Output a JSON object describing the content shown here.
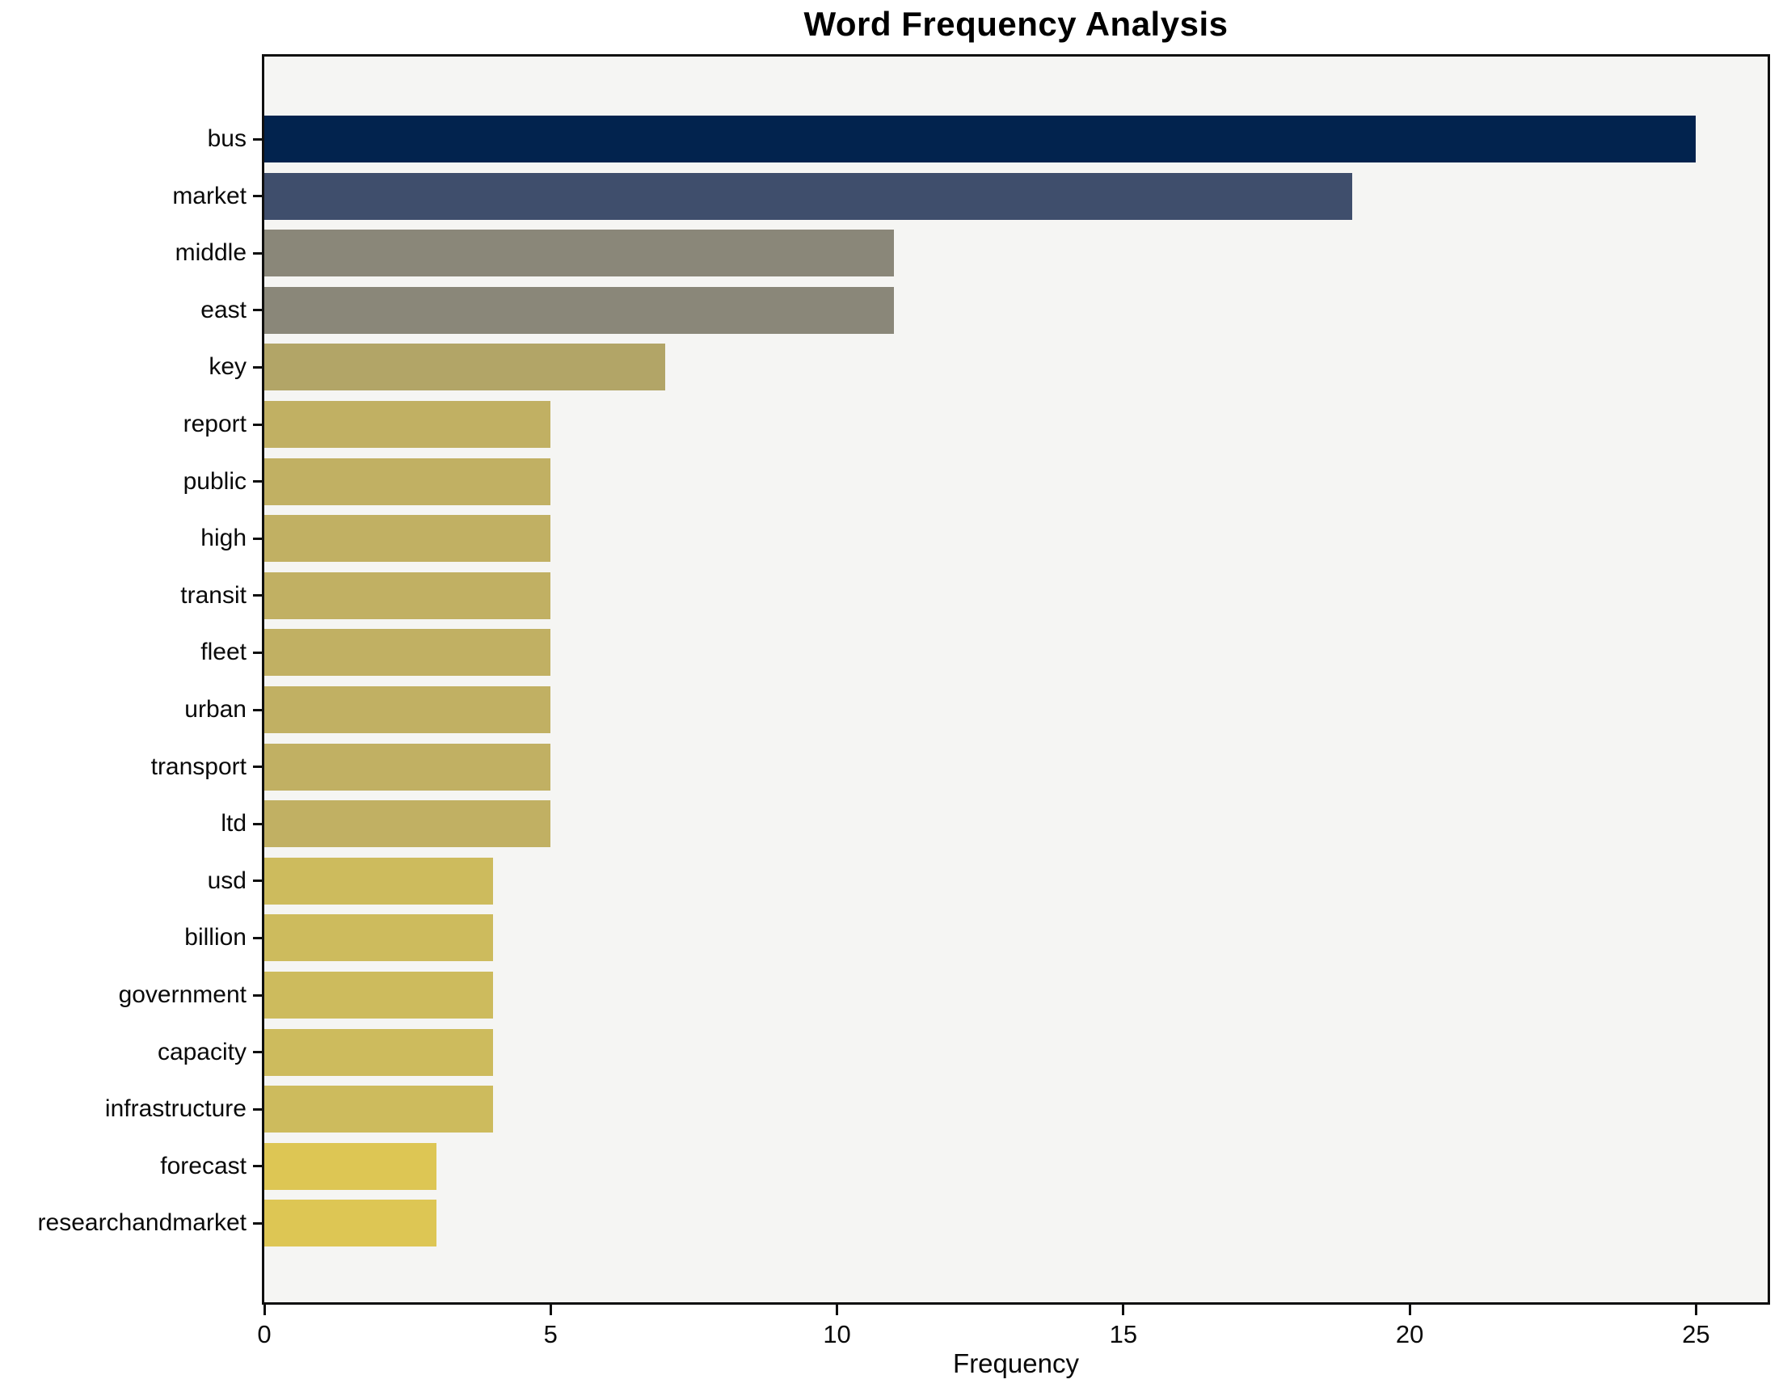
{
  "chart_data": {
    "type": "bar",
    "orientation": "horizontal",
    "title": "Word Frequency Analysis",
    "xlabel": "Frequency",
    "ylabel": "",
    "categories": [
      "bus",
      "market",
      "middle",
      "east",
      "key",
      "report",
      "public",
      "high",
      "transit",
      "fleet",
      "urban",
      "transport",
      "ltd",
      "usd",
      "billion",
      "government",
      "capacity",
      "infrastructure",
      "forecast",
      "researchandmarket"
    ],
    "values": [
      25,
      19,
      11,
      11,
      7,
      5,
      5,
      5,
      5,
      5,
      5,
      5,
      5,
      4,
      4,
      4,
      4,
      4,
      3,
      3
    ],
    "bar_colors": [
      "#02234e",
      "#3f4e6c",
      "#8a8779",
      "#8a8779",
      "#b2a567",
      "#c1b063",
      "#c1b063",
      "#c1b063",
      "#c1b063",
      "#c1b063",
      "#c1b063",
      "#c1b063",
      "#c1b063",
      "#cdbb5d",
      "#cdbb5d",
      "#cdbb5d",
      "#cdbb5d",
      "#cdbb5d",
      "#ddc654",
      "#ddc654"
    ],
    "xlim": [
      0,
      26.25
    ],
    "xticks": [
      0,
      5,
      10,
      15,
      20,
      25
    ],
    "grid": false,
    "legend": "none",
    "plot_background": "#f5f5f3",
    "figure_background": "#ffffff",
    "frame_color": "#0f0f0f"
  }
}
